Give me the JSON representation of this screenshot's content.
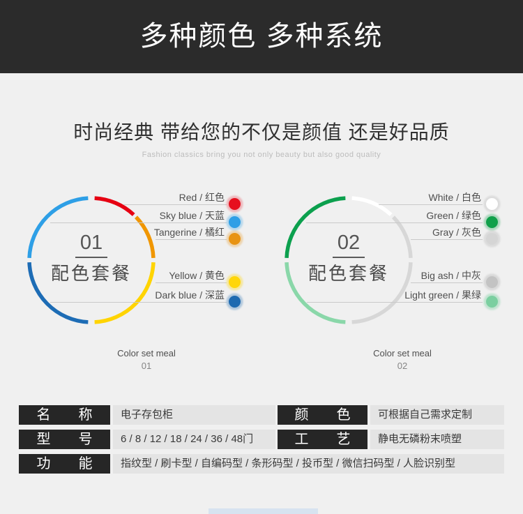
{
  "header": {
    "title": "多种颜色 多种系统",
    "bg": "#2b2b2b"
  },
  "intro": {
    "heading": "时尚经典 带给您的不仅是颜值 还是好品质",
    "subheading": "Fashion classics bring you not only beauty but also good quality"
  },
  "palettes": [
    {
      "number": "01",
      "title": "配色套餐",
      "caption_line1": "Color set meal",
      "caption_line2": "01",
      "colors": [
        {
          "label": "Red / 红色",
          "hex": "#e60f1e",
          "halo": "rgba(230,15,30,0.25)"
        },
        {
          "label": "Sky blue / 天蓝",
          "hex": "#2e9fe6",
          "halo": "rgba(46,159,230,0.3)"
        },
        {
          "label": "Tangerine / 橘红",
          "hex": "#e89312",
          "halo": "rgba(232,147,18,0.3)"
        },
        {
          "label": "Yellow / 黄色",
          "hex": "#ffd60a",
          "halo": "rgba(255,212,0,0.35)"
        },
        {
          "label": "Dark blue / 深蓝",
          "hex": "#1e6ab0",
          "halo": "rgba(30,106,176,0.3)"
        }
      ],
      "ring": {
        "segments": [
          {
            "from": 3,
            "to": 43,
            "color": "#e60012"
          },
          {
            "from": 46,
            "to": 88,
            "color": "#f09600"
          },
          {
            "from": 92,
            "to": 177,
            "color": "#ffd400"
          },
          {
            "from": 183,
            "to": 268,
            "color": "#1d6cb5"
          },
          {
            "from": 272,
            "to": 357,
            "color": "#2e9fe6"
          }
        ]
      }
    },
    {
      "number": "02",
      "title": "配色套餐",
      "caption_line1": "Color set meal",
      "caption_line2": "02",
      "colors": [
        {
          "label": "White / 白色",
          "hex": "#ffffff",
          "halo": "rgba(175,175,175,0.3)"
        },
        {
          "label": "Green / 绿色",
          "hex": "#10a04a",
          "halo": "rgba(16,160,74,0.3)"
        },
        {
          "label": "Gray / 灰色",
          "hex": "#d5d5d5",
          "halo": "rgba(160,160,160,0.25)"
        },
        {
          "label": "Big ash / 中灰",
          "hex": "#c3c3c3",
          "halo": "rgba(150,150,150,0.25)"
        },
        {
          "label": "Light green / 果绿",
          "hex": "#7bcfa0",
          "halo": "rgba(123,207,160,0.4)"
        }
      ],
      "ring": {
        "segments": [
          {
            "from": 3,
            "to": 43,
            "color": "#ffffff"
          },
          {
            "from": 46,
            "to": 88,
            "color": "#d7d7d7"
          },
          {
            "from": 92,
            "to": 177,
            "color": "#d7d7d7"
          },
          {
            "from": 183,
            "to": 268,
            "color": "#8ad7a9"
          },
          {
            "from": 272,
            "to": 357,
            "color": "#0ca04e"
          }
        ]
      }
    }
  ],
  "spec": {
    "rows": [
      {
        "cells": [
          {
            "label": "名　　称",
            "value": "电子存包柜"
          },
          {
            "label": "颜　　色",
            "value": "可根据自己需求定制"
          }
        ]
      },
      {
        "cells": [
          {
            "label": "型　　号",
            "value": "6 / 8 / 12 / 18 / 24 / 36 / 48门"
          },
          {
            "label": "工　　艺",
            "value": "静电无磷粉末喷塑"
          }
        ]
      },
      {
        "cells": [
          {
            "label": "功　　能",
            "value": "指纹型 / 刷卡型 / 自编码型 / 条形码型 / 投币型 / 微信扫码型 / 人脸识别型"
          }
        ]
      }
    ]
  }
}
